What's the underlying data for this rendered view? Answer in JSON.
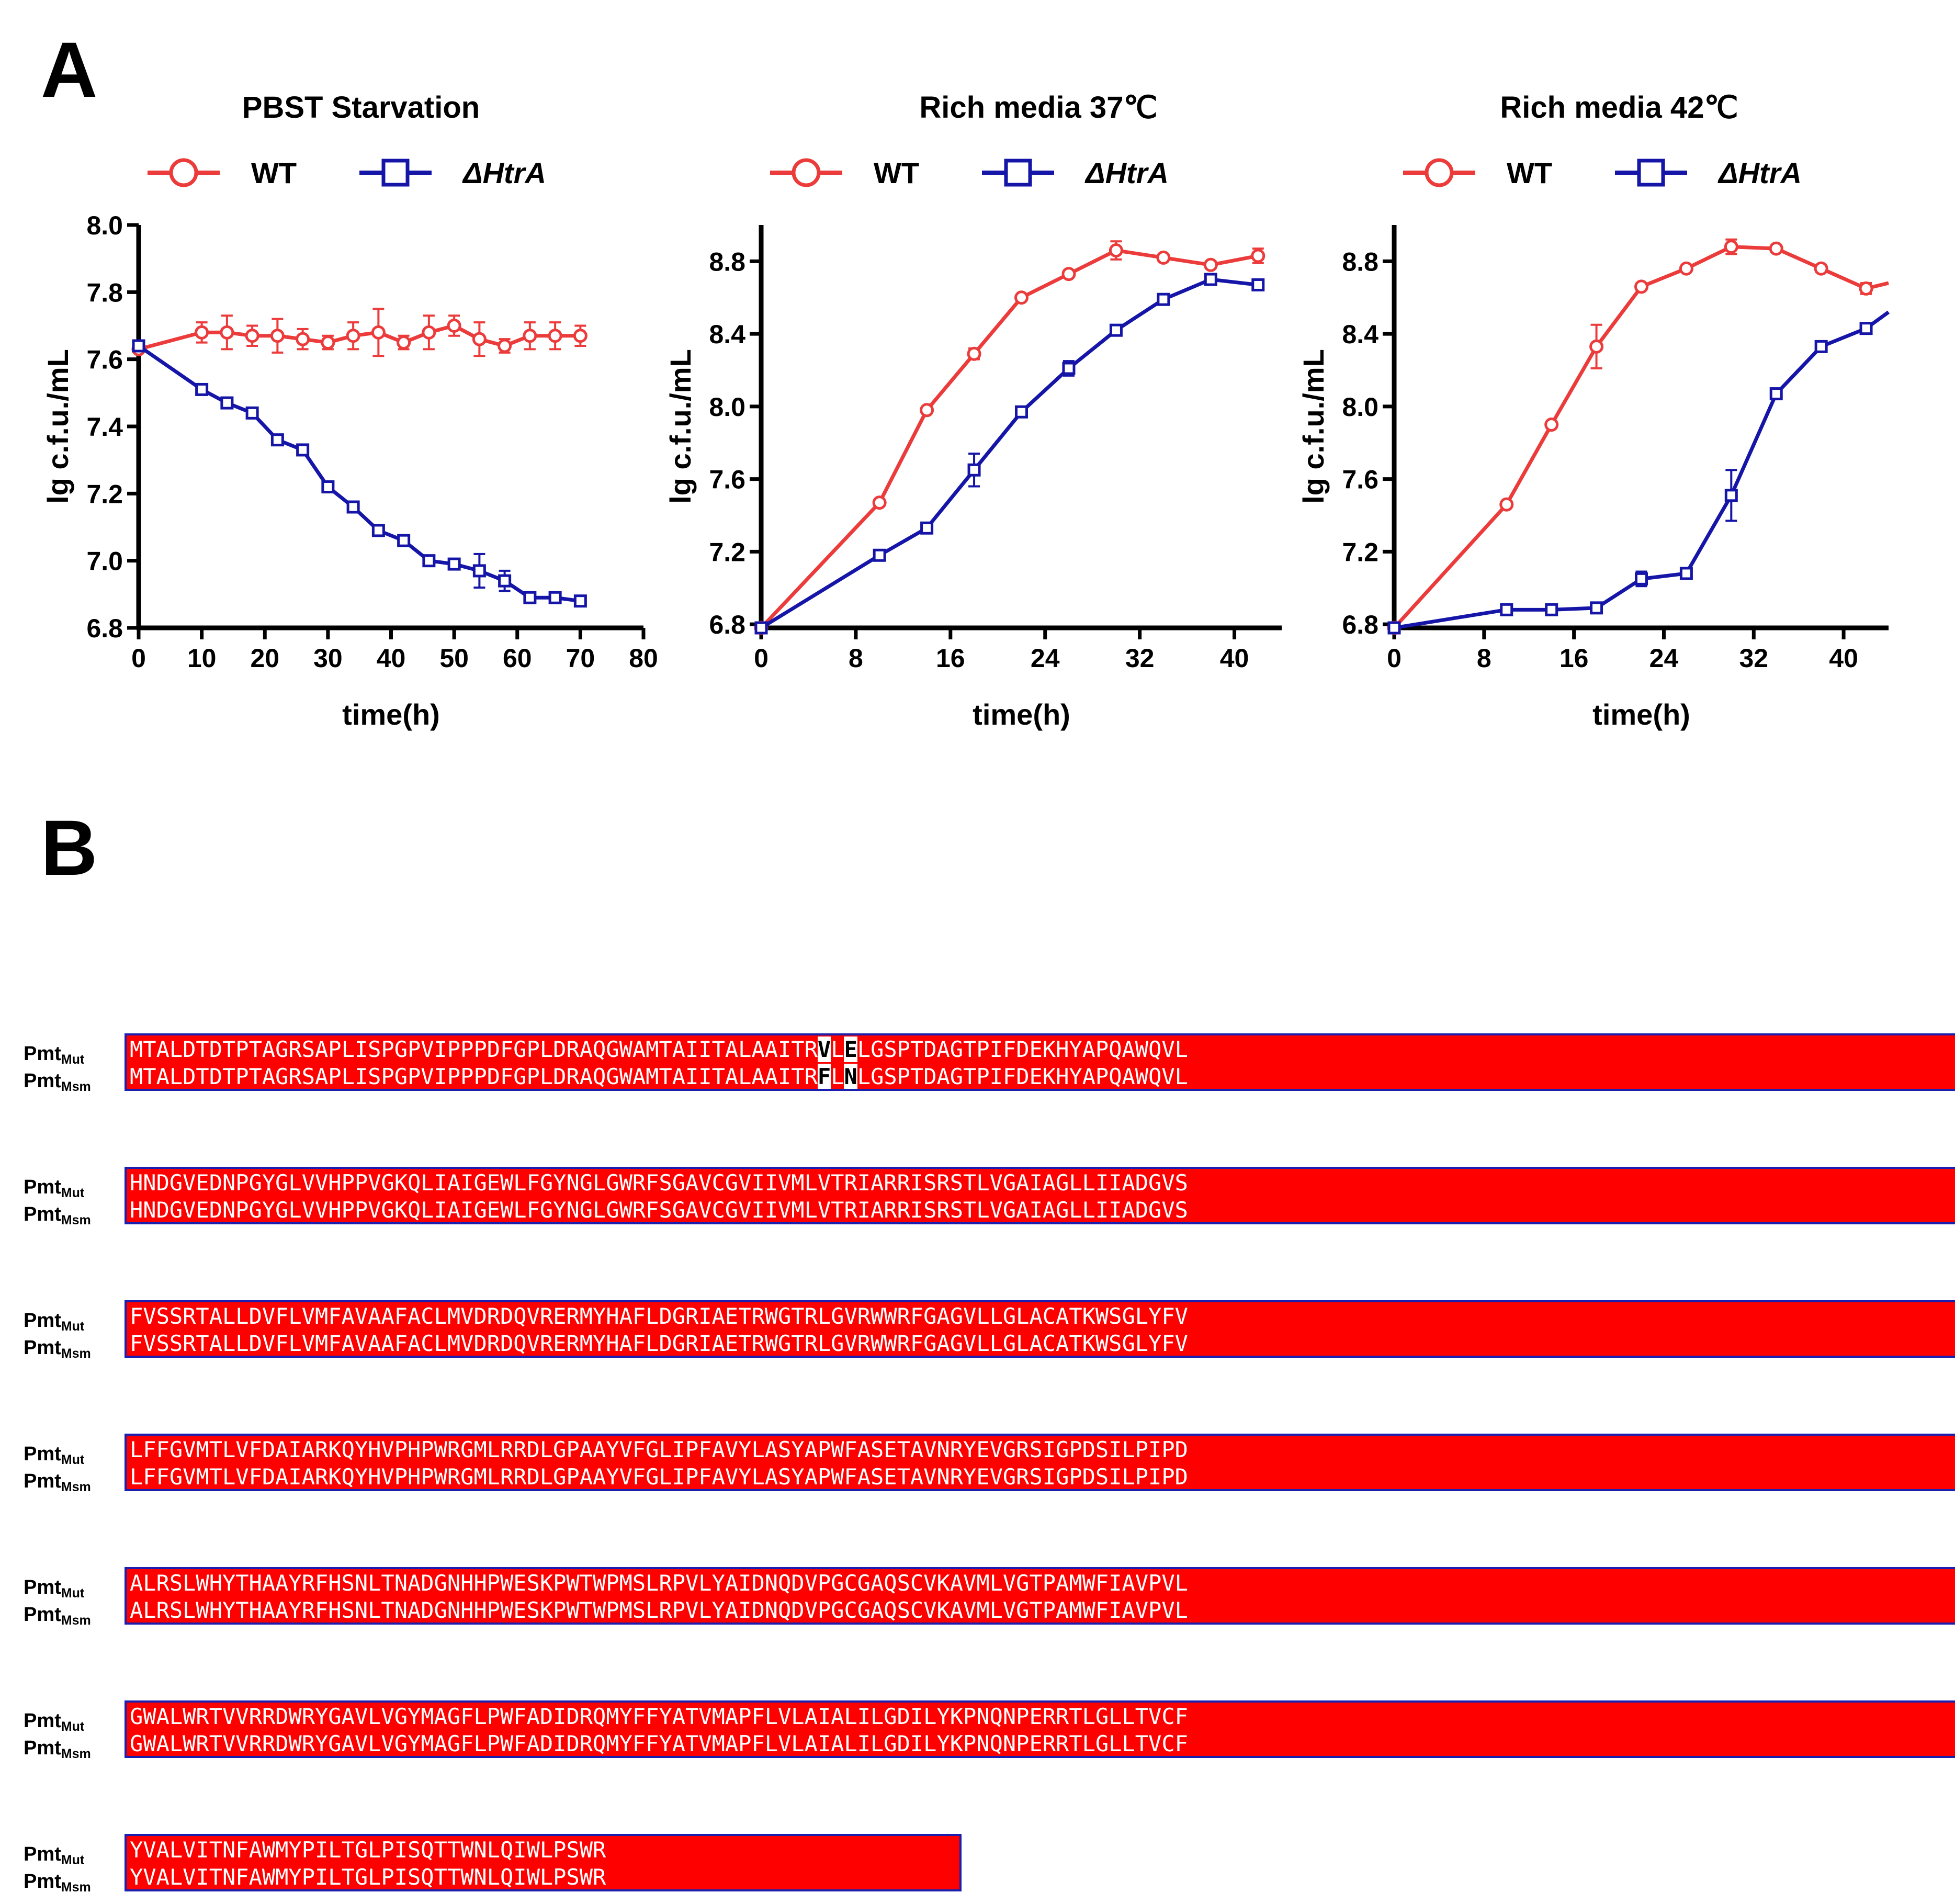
{
  "panel_labels": {
    "a": "A",
    "b": "B"
  },
  "colors": {
    "wt": "#ec3b3b",
    "htra": "#1515a8",
    "align_bg": "#ff0000",
    "align_border": "#1c1fae"
  },
  "chart_data": [
    {
      "type": "line",
      "title": "PBST  Starvation",
      "xlabel": "time(h)",
      "ylabel": "lg c.f.u./mL",
      "xlim": [
        0,
        80
      ],
      "ylim": [
        6.8,
        8.0
      ],
      "xticks": [
        0,
        10,
        20,
        30,
        40,
        50,
        60,
        70,
        80
      ],
      "yticks": [
        6.8,
        7.0,
        7.2,
        7.4,
        7.6,
        7.8,
        8.0
      ],
      "ytick_labels": [
        "6.8",
        "7.0",
        "7.2",
        "7.4",
        "7.6",
        "7.8",
        "8.0"
      ],
      "legend": "top",
      "series": [
        {
          "name": "WT",
          "marker": "circle",
          "x": [
            0,
            10,
            14,
            18,
            22,
            26,
            30,
            34,
            38,
            42,
            46,
            50,
            54,
            58,
            62,
            66,
            70
          ],
          "y": [
            7.63,
            7.68,
            7.68,
            7.67,
            7.67,
            7.66,
            7.65,
            7.67,
            7.68,
            7.65,
            7.68,
            7.7,
            7.66,
            7.64,
            7.67,
            7.67,
            7.67
          ],
          "err": [
            0.01,
            0.03,
            0.05,
            0.03,
            0.05,
            0.03,
            0.02,
            0.04,
            0.07,
            0.02,
            0.05,
            0.03,
            0.05,
            0.02,
            0.04,
            0.04,
            0.03
          ]
        },
        {
          "name": "ΔHtrA",
          "marker": "square",
          "x": [
            0,
            10,
            14,
            18,
            22,
            26,
            30,
            34,
            38,
            42,
            46,
            50,
            54,
            58,
            62,
            66,
            70
          ],
          "y": [
            7.64,
            7.51,
            7.47,
            7.44,
            7.36,
            7.33,
            7.22,
            7.16,
            7.09,
            7.06,
            7.0,
            6.99,
            6.97,
            6.94,
            6.89,
            6.89,
            6.88
          ],
          "err": [
            0.01,
            0.01,
            0.01,
            0.01,
            0.01,
            0.01,
            0.01,
            0.01,
            0.01,
            0.01,
            0.01,
            0.01,
            0.05,
            0.03,
            0.01,
            0.01,
            0.01
          ]
        }
      ]
    },
    {
      "type": "line",
      "title": "Rich media 37℃",
      "xlabel": "time(h)",
      "ylabel": "lg c.f.u./mL",
      "xlim": [
        0,
        44
      ],
      "ylim": [
        6.78,
        9.0
      ],
      "xticks": [
        0,
        8,
        16,
        24,
        32,
        40
      ],
      "yticks": [
        6.8,
        7.2,
        7.6,
        8.0,
        8.4,
        8.8
      ],
      "ytick_labels": [
        "6.8",
        "7.2",
        "7.6",
        "8.0",
        "8.4",
        "8.8"
      ],
      "legend": "top",
      "series": [
        {
          "name": "WT",
          "marker": "circle",
          "x": [
            0,
            10,
            14,
            18,
            22,
            26,
            30,
            34,
            38,
            42
          ],
          "y": [
            6.78,
            7.47,
            7.98,
            8.29,
            8.6,
            8.73,
            8.86,
            8.82,
            8.78,
            8.83
          ],
          "err": [
            0.01,
            0.01,
            0.01,
            0.03,
            0.01,
            0.01,
            0.05,
            0.02,
            0.02,
            0.04
          ]
        },
        {
          "name": "ΔHtrA",
          "marker": "square",
          "x": [
            0,
            10,
            14,
            18,
            22,
            26,
            30,
            34,
            38,
            42
          ],
          "y": [
            6.78,
            7.18,
            7.33,
            7.65,
            7.97,
            8.21,
            8.42,
            8.59,
            8.7,
            8.67
          ],
          "err": [
            0.01,
            0.01,
            0.01,
            0.09,
            0.01,
            0.04,
            0.01,
            0.01,
            0.02,
            0.02
          ]
        }
      ]
    },
    {
      "type": "line",
      "title": "Rich media 42℃",
      "xlabel": "time(h)",
      "ylabel": "lg c.f.u./mL",
      "xlim": [
        0,
        44
      ],
      "ylim": [
        6.78,
        9.0
      ],
      "xticks": [
        0,
        8,
        16,
        24,
        32,
        40
      ],
      "yticks": [
        6.8,
        7.2,
        7.6,
        8.0,
        8.4,
        8.8
      ],
      "ytick_labels": [
        "6.8",
        "7.2",
        "7.6",
        "8.0",
        "8.4",
        "8.8"
      ],
      "legend": "top",
      "series": [
        {
          "name": "WT",
          "marker": "circle",
          "x": [
            0,
            10,
            14,
            18,
            22,
            26,
            30,
            34,
            38,
            42,
            44
          ],
          "y": [
            6.78,
            7.46,
            7.9,
            8.33,
            8.66,
            8.76,
            8.88,
            8.87,
            8.76,
            8.65,
            8.68
          ],
          "err": [
            0.01,
            0.01,
            0.01,
            0.12,
            0.01,
            0.01,
            0.04,
            0.01,
            0.02,
            0.03,
            0
          ]
        },
        {
          "name": "ΔHtrA",
          "marker": "square",
          "x": [
            0,
            10,
            14,
            18,
            22,
            26,
            30,
            34,
            38,
            42,
            44
          ],
          "y": [
            6.78,
            6.88,
            6.88,
            6.89,
            7.05,
            7.08,
            7.51,
            8.07,
            8.33,
            8.43,
            8.52
          ],
          "err": [
            0.01,
            0.01,
            0.01,
            0.01,
            0.04,
            0.01,
            0.14,
            0.01,
            0.01,
            0.01,
            0
          ]
        }
      ]
    }
  ],
  "alignment": {
    "seq1_label": "Pmt",
    "seq1_sub": "Mut",
    "seq2_label": "Pmt",
    "seq2_sub": "Msm",
    "blocks": [
      {
        "mut": "MTALDTDTPTAGRSAPLISPGPVIPPPDFGPLDRAQGWAMTAIITALAAITRVLELGSPTDAGTPIFDEKHYAPQAWQVL",
        "msm": "MTALDTDTPTAGRSAPLISPGPVIPPPDFGPLDRAQGWAMTAIITALAAITRFLNLGSPTDAGTPIFDEKHYAPQAWQVL",
        "mismatch_positions": [
          52,
          54
        ]
      },
      {
        "mut": "HNDGVEDNPGYGLVVHPPVGKQLIAIGEWLFGYNGLGWRFSGAVCGVIIVMLVTRIARRISRSTLVGAIAGLLIIADGVS",
        "msm": "HNDGVEDNPGYGLVVHPPVGKQLIAIGEWLFGYNGLGWRFSGAVCGVIIVMLVTRIARRISRSTLVGAIAGLLIIADGVS",
        "mismatch_positions": []
      },
      {
        "mut": "FVSSRTALLDVFLVMFAVAAFACLMVDRDQVRERMYHAFLDGRIAETRWGTRLGVRWWRFGAGVLLGLACATKWSGLYFV",
        "msm": "FVSSRTALLDVFLVMFAVAAFACLMVDRDQVRERMYHAFLDGRIAETRWGTRLGVRWWRFGAGVLLGLACATKWSGLYFV",
        "mismatch_positions": []
      },
      {
        "mut": "LFFGVMTLVFDAIARKQYHVPHPWRGMLRRDLGPAAYVFGLIPFAVYLASYAPWFASETAVNRYEVGRSIGPDSILPIPD",
        "msm": "LFFGVMTLVFDAIARKQYHVPHPWRGMLRRDLGPAAYVFGLIPFAVYLASYAPWFASETAVNRYEVGRSIGPDSILPIPD",
        "mismatch_positions": []
      },
      {
        "mut": "ALRSLWHYTHAAYRFHSNLTNADGNHHPWESKPWTWPMSLRPVLYAIDNQDVPGCGAQSCVKAVMLVGTPAMWFIAVPVL",
        "msm": "ALRSLWHYTHAAYRFHSNLTNADGNHHPWESKPWTWPMSLRPVLYAIDNQDVPGCGAQSCVKAVMLVGTPAMWFIAVPVL",
        "mismatch_positions": []
      },
      {
        "mut": "GWALWRTVVRRDWRYGAVLVGYMAGFLPWFADIDRQMYFFYATVMAPFLVLAIALILGDILYKPNQNPERRTLGLLTVCF",
        "msm": "GWALWRTVVRRDWRYGAVLVGYMAGFLPWFADIDRQMYFFYATVMAPFLVLAIALILGDILYKPNQNPERRTLGLLTVCF",
        "mismatch_positions": []
      },
      {
        "mut": "YVALVITNFAWMYPILTGLPISQTTWNLQIWLPSWR",
        "msm": "YVALVITNFAWMYPILTGLPISQTTWNLQIWLPSWR",
        "mismatch_positions": []
      }
    ]
  }
}
